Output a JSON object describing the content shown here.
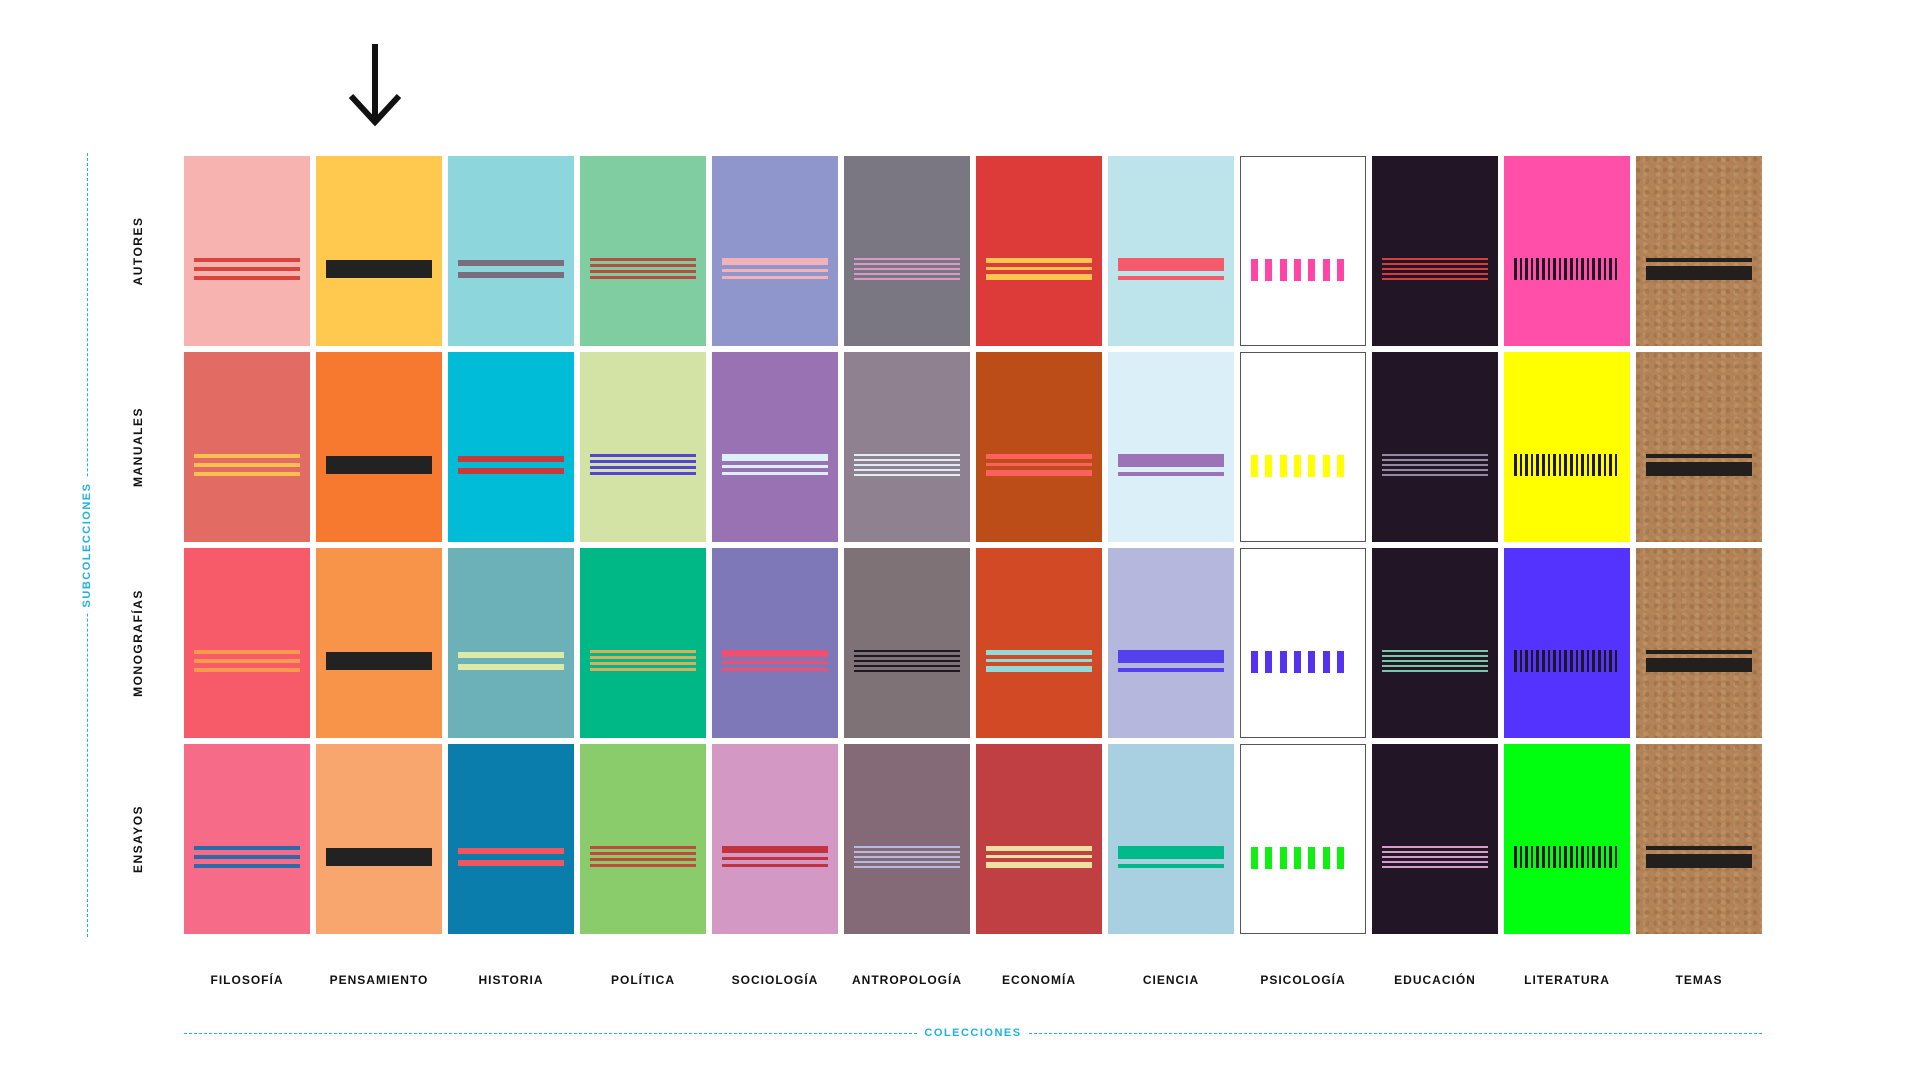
{
  "columns": [
    {
      "label": "FILOSOFÍA",
      "pattern": "triple",
      "colors": [
        {
          "bg": "#f7b3b0",
          "fg": "#d9443c"
        },
        {
          "bg": "#e26c63",
          "fg": "#f8c14f"
        },
        {
          "bg": "#f75b6a",
          "fg": "#f79a4d"
        },
        {
          "bg": "#f56b88",
          "fg": "#2c6aa8"
        }
      ]
    },
    {
      "label": "PENSAMIENTO",
      "pattern": "block",
      "colors": [
        {
          "bg": "#ffc84f",
          "fg": "#222222"
        },
        {
          "bg": "#f6792f",
          "fg": "#222222"
        },
        {
          "bg": "#f8944a",
          "fg": "#222222"
        },
        {
          "bg": "#f8a66e",
          "fg": "#222222"
        }
      ]
    },
    {
      "label": "HISTORIA",
      "pattern": "double",
      "colors": [
        {
          "bg": "#8dd6dc",
          "fg": "#7b6e7c"
        },
        {
          "bg": "#00bcd6",
          "fg": "#c9393c"
        },
        {
          "bg": "#6bb1b7",
          "fg": "#dbeaa6"
        },
        {
          "bg": "#0a7dac",
          "fg": "#f0565f"
        }
      ]
    },
    {
      "label": "POLÍTICA",
      "pattern": "quad",
      "colors": [
        {
          "bg": "#80cda1",
          "fg": "#b84d40"
        },
        {
          "bg": "#d2e3a5",
          "fg": "#5545d6"
        },
        {
          "bg": "#00b786",
          "fg": "#d9ad5c"
        },
        {
          "bg": "#8acb6c",
          "fg": "#c2493d"
        }
      ]
    },
    {
      "label": "SOCIOLOGÍA",
      "pattern": "thick-two",
      "colors": [
        {
          "bg": "#8f96cc",
          "fg": "#f3b2b9"
        },
        {
          "bg": "#9872b2",
          "fg": "#dcf0f6"
        },
        {
          "bg": "#7f78b8",
          "fg": "#f0506f"
        },
        {
          "bg": "#d399c4",
          "fg": "#c3333e"
        }
      ]
    },
    {
      "label": "ANTROPOLOGÍA",
      "pattern": "five",
      "colors": [
        {
          "bg": "#7a7782",
          "fg": "#d99ac9"
        },
        {
          "bg": "#8f818f",
          "fg": "#dfeef5"
        },
        {
          "bg": "#7e7277",
          "fg": "#1f1722"
        },
        {
          "bg": "#836a76",
          "fg": "#b5badf"
        }
      ]
    },
    {
      "label": "ECONOMÍA",
      "pattern": "three-mixed",
      "colors": [
        {
          "bg": "#dc3b3a",
          "fg": "#ffc550"
        },
        {
          "bg": "#bd4d18",
          "fg": "#ff5f5f"
        },
        {
          "bg": "#d24a25",
          "fg": "#93d9d9"
        },
        {
          "bg": "#c03f43",
          "fg": "#ece1a1"
        }
      ]
    },
    {
      "label": "CIENCIA",
      "pattern": "block-line",
      "colors": [
        {
          "bg": "#bde4ea",
          "fg": "#f65b6b"
        },
        {
          "bg": "#daeff7",
          "fg": "#9b73b6"
        },
        {
          "bg": "#b6b7dc",
          "fg": "#5540ee"
        },
        {
          "bg": "#a8d0e1",
          "fg": "#00b98a"
        }
      ]
    },
    {
      "label": "PSICOLOGÍA",
      "pattern": "dashes",
      "colors": [
        {
          "bg": "#ffffff",
          "fg": "#ff45a5",
          "border": true
        },
        {
          "bg": "#ffffff",
          "fg": "#ffff00",
          "border": true
        },
        {
          "bg": "#ffffff",
          "fg": "#5533ee",
          "border": true
        },
        {
          "bg": "#ffffff",
          "fg": "#11ee11",
          "border": true
        }
      ]
    },
    {
      "label": "EDUCACIÓN",
      "pattern": "five",
      "colors": [
        {
          "bg": "#211526",
          "fg": "#d83c3c"
        },
        {
          "bg": "#211526",
          "fg": "#948aa0"
        },
        {
          "bg": "#211526",
          "fg": "#77c7a5"
        },
        {
          "bg": "#211526",
          "fg": "#d79bcb"
        }
      ]
    },
    {
      "label": "LITERATURA",
      "pattern": "ticks",
      "colors": [
        {
          "bg": "#ff4fa8",
          "fg": "#1d1722"
        },
        {
          "bg": "#ffff00",
          "fg": "#1d1722"
        },
        {
          "bg": "#5533ff",
          "fg": "#1d1722"
        },
        {
          "bg": "#00ff0f",
          "fg": "#1d1722"
        }
      ]
    },
    {
      "label": "TEMAS",
      "pattern": "kraft",
      "colors": [
        {
          "bg": "kraft",
          "fg": "#221f1d"
        },
        {
          "bg": "kraft",
          "fg": "#221f1d"
        },
        {
          "bg": "kraft",
          "fg": "#221f1d"
        },
        {
          "bg": "kraft",
          "fg": "#221f1d"
        }
      ]
    }
  ],
  "rows": [
    {
      "label": "AUTORES"
    },
    {
      "label": "MANUALES"
    },
    {
      "label": "MONOGRAFÍAS"
    },
    {
      "label": "ENSAYOS"
    }
  ],
  "axis": {
    "rows_title": "SUBCOLECCIONES",
    "columns_title": "COLECCIONES"
  },
  "highlight": {
    "column_index": 1,
    "icon": "arrow-down-icon"
  }
}
